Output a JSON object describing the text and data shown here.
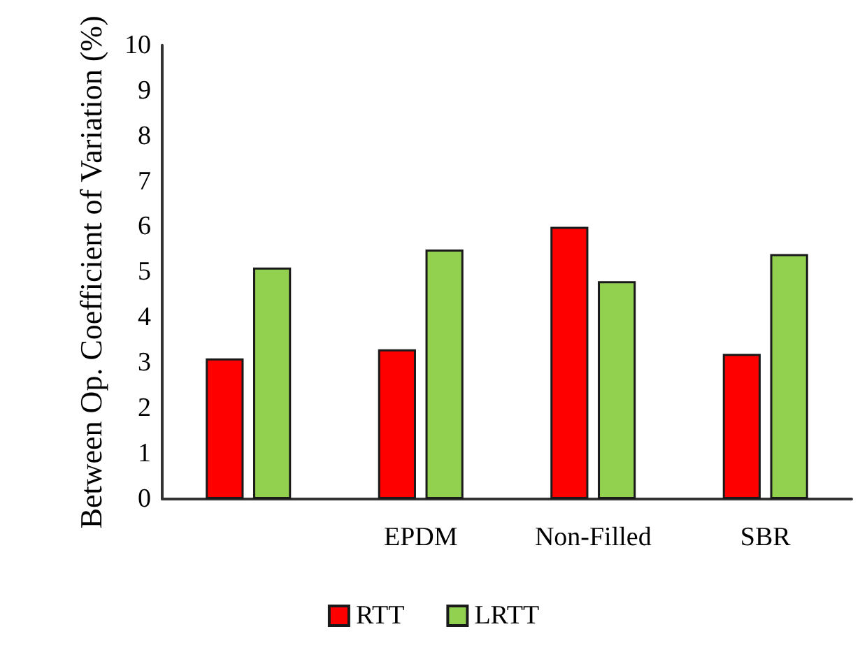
{
  "chart_data": {
    "type": "bar",
    "ylabel": "Between Op. Coefficient of Variation (%)",
    "categories": [
      null,
      "EPDM",
      "Non-Filled",
      "SBR"
    ],
    "series": [
      {
        "name": "RTT",
        "color": "#ff0000",
        "values": [
          3.1,
          3.3,
          6.0,
          3.2
        ]
      },
      {
        "name": "LRTT",
        "color": "#92d050",
        "values": [
          5.1,
          5.5,
          4.8,
          5.4
        ]
      }
    ],
    "ylim": [
      0,
      10
    ],
    "yticks": [
      0,
      1,
      2,
      3,
      4,
      5,
      6,
      7,
      8,
      9,
      10
    ],
    "grid": false,
    "legend": "bottom"
  }
}
